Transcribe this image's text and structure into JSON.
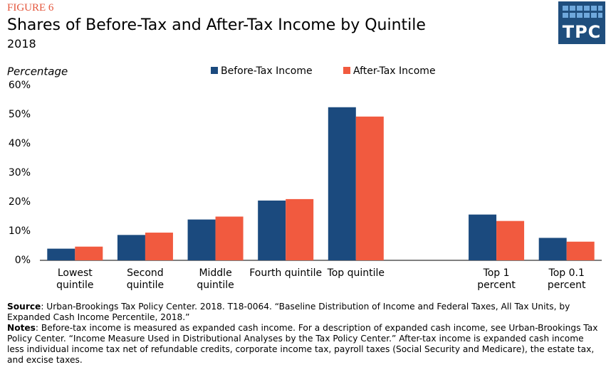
{
  "chart_data": {
    "type": "bar",
    "figure_label": "FIGURE 6",
    "title": "Shares of Before-Tax and After-Tax Income by Quintile",
    "subtitle": "2018",
    "logo": "TPC",
    "y_axis_label": "Percentage",
    "categories": [
      "Lowest quintile",
      "Second quintile",
      "Middle quintile",
      "Fourth quintile",
      "Top quintile",
      null,
      "Top 1 percent",
      "Top 0.1 percent"
    ],
    "series": [
      {
        "name": "Before-Tax Income",
        "color": "#1b4a7e",
        "values": [
          4.0,
          8.7,
          14.0,
          20.5,
          52.5,
          null,
          15.7,
          7.7
        ]
      },
      {
        "name": "After-Tax Income",
        "color": "#f15a3f",
        "values": [
          4.7,
          9.5,
          15.0,
          21.0,
          49.3,
          null,
          13.5,
          6.4
        ]
      }
    ],
    "ylim": [
      0,
      60
    ],
    "yticks": [
      {
        "value": 0,
        "label": "0%"
      },
      {
        "value": 10,
        "label": "10%"
      },
      {
        "value": 20,
        "label": "20%"
      },
      {
        "value": 30,
        "label": "30%"
      },
      {
        "value": 40,
        "label": "40%"
      },
      {
        "value": 50,
        "label": "50%"
      },
      {
        "value": 60,
        "label": "60%"
      }
    ],
    "grid": false,
    "legend_position": "top",
    "source_label": "Source",
    "source_text": ": Urban-Brookings Tax Policy Center. 2018. T18-0064.  “Baseline Distribution of Income and Federal Taxes, All Tax Units, by Expanded Cash Income Percentile, 2018.”",
    "notes_label": "Notes",
    "notes_text": ": Before-tax income is measured as expanded cash income. For a description of expanded cash income, see Urban-Brookings Tax Policy Center. “Income Measure Used in Distributional Analyses by the Tax Policy Center.” After-tax income is expanded cash income less individual income tax net of refundable credits, corporate income tax, payroll taxes (Social Security and Medicare), the estate tax, and excise taxes."
  }
}
